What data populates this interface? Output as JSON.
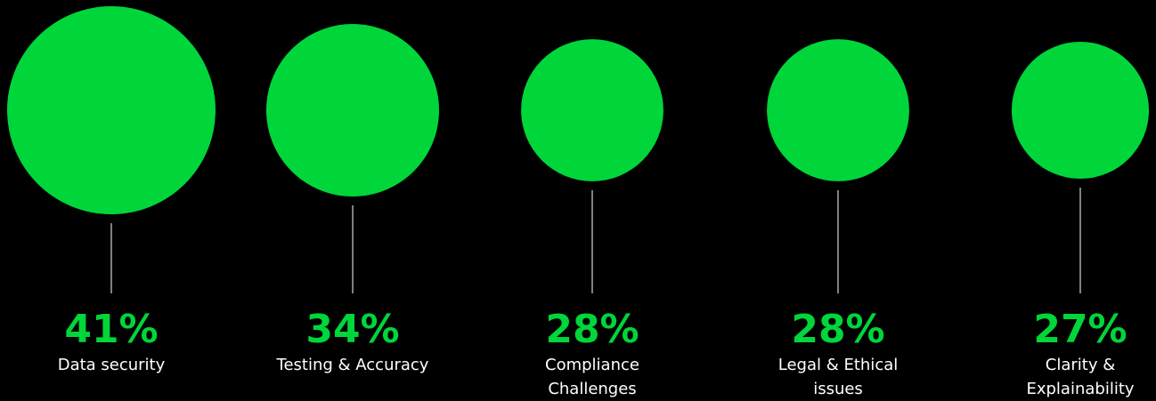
{
  "colors": {
    "background": "#000000",
    "bubble": "#00d63a",
    "percent_text": "#00d63a",
    "label_text": "#ffffff",
    "connector": "#ffffff"
  },
  "chart_data": {
    "type": "bubble",
    "unit": "%",
    "categories": [
      "Data security",
      "Testing & Accuracy",
      "Compliance Challenges",
      "Legal & Ethical issues",
      "Clarity & Explainability"
    ],
    "values": [
      41,
      34,
      28,
      28,
      27
    ],
    "value_labels": [
      "41%",
      "34%",
      "28%",
      "28%",
      "27%"
    ],
    "label_lines": [
      [
        "Data security"
      ],
      [
        "Testing & Accuracy"
      ],
      [
        "Compliance",
        "Challenges"
      ],
      [
        "Legal & Ethical",
        "issues"
      ],
      [
        "Clarity &",
        "Explainability"
      ]
    ]
  }
}
